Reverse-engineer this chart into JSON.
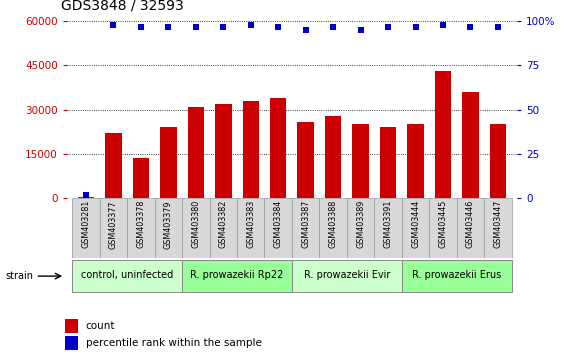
{
  "title": "GDS3848 / 32593",
  "samples": [
    "GSM403281",
    "GSM403377",
    "GSM403378",
    "GSM403379",
    "GSM403380",
    "GSM403382",
    "GSM403383",
    "GSM403384",
    "GSM403387",
    "GSM403388",
    "GSM403389",
    "GSM403391",
    "GSM403444",
    "GSM403445",
    "GSM403446",
    "GSM403447"
  ],
  "counts": [
    500,
    22000,
    13500,
    24000,
    31000,
    32000,
    33000,
    34000,
    26000,
    28000,
    25000,
    24000,
    25000,
    43000,
    36000,
    25000
  ],
  "percentile_ranks": [
    2,
    98,
    97,
    97,
    97,
    97,
    98,
    97,
    95,
    97,
    95,
    97,
    97,
    98,
    97,
    97
  ],
  "ylim_left": [
    0,
    60000
  ],
  "ylim_right": [
    0,
    100
  ],
  "yticks_left": [
    0,
    15000,
    30000,
    45000,
    60000
  ],
  "yticks_right": [
    0,
    25,
    50,
    75,
    100
  ],
  "bar_color": "#cc0000",
  "dot_color": "#0000cc",
  "groups": [
    {
      "label": "control, uninfected",
      "start": 0,
      "end": 4,
      "color": "#ccffcc"
    },
    {
      "label": "R. prowazekii Rp22",
      "start": 4,
      "end": 8,
      "color": "#99ff99"
    },
    {
      "label": "R. prowazekii Evir",
      "start": 8,
      "end": 12,
      "color": "#ccffcc"
    },
    {
      "label": "R. prowazekii Erus",
      "start": 12,
      "end": 16,
      "color": "#99ff99"
    }
  ],
  "legend_items": [
    {
      "label": "count",
      "color": "#cc0000"
    },
    {
      "label": "percentile rank within the sample",
      "color": "#0000cc"
    }
  ],
  "strain_label": "strain",
  "bg_color": "#ffffff",
  "left_tick_color": "#cc0000",
  "right_tick_color": "#0000cc",
  "bar_width": 0.6,
  "dot_size": 18,
  "label_box_color": "#d8d8d8",
  "label_box_edge": "#999999"
}
